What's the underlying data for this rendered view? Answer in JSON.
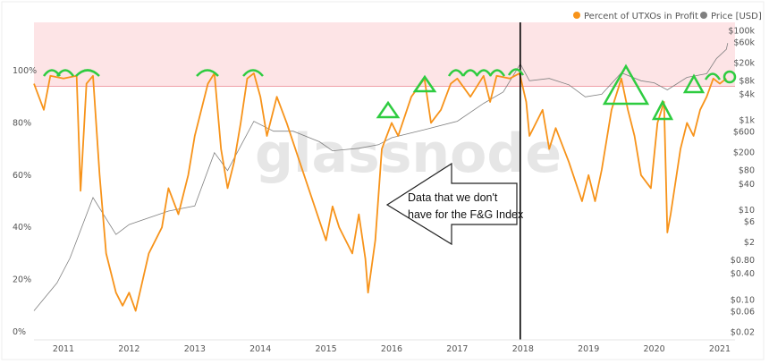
{
  "chart_data": {
    "type": "line",
    "title": "",
    "legend": {
      "placement": "top-right",
      "entries": [
        "Percent of UTXOs in Profit",
        "Price [USD]"
      ]
    },
    "colors": {
      "percent": "#f7931a",
      "price": "#808080",
      "band": "#fde4e6",
      "threshold": "#f0a0a8",
      "annotation": "#2ecc40",
      "divider": "#000000"
    },
    "x_ticks": [
      "2011",
      "2012",
      "2013",
      "2014",
      "2015",
      "2016",
      "2017",
      "2018",
      "2019",
      "2020",
      "2021"
    ],
    "xlim": [
      2010.55,
      2021.2
    ],
    "y_left": {
      "ticks": [
        "0%",
        "20%",
        "40%",
        "60%",
        "80%",
        "100%"
      ],
      "ylim": [
        0,
        100
      ]
    },
    "y_right": {
      "scale": "log",
      "ticks": [
        "$100k",
        "$60k",
        "$20k",
        "$8k",
        "$4k",
        "$1k",
        "$600",
        "$200",
        "$80",
        "$40",
        "$10",
        "$6",
        "$2",
        "$0.80",
        "$0.40",
        "$0.10",
        "$0.06",
        "$0.02"
      ],
      "tick_values": [
        100000,
        60000,
        20000,
        8000,
        4000,
        1000,
        600,
        200,
        80,
        40,
        10,
        6,
        2,
        0.8,
        0.4,
        0.1,
        0.06,
        0.02
      ]
    },
    "threshold_percent": 94,
    "divider_year": 2018.0,
    "series": [
      {
        "name": "Percent of UTXOs in Profit",
        "x": [
          2010.55,
          2010.7,
          2010.8,
          2011.0,
          2011.2,
          2011.26,
          2011.35,
          2011.45,
          2011.55,
          2011.65,
          2011.8,
          2011.9,
          2012.0,
          2012.1,
          2012.3,
          2012.5,
          2012.6,
          2012.75,
          2012.9,
          2013.0,
          2013.2,
          2013.3,
          2013.4,
          2013.5,
          2013.6,
          2013.7,
          2013.8,
          2013.9,
          2014.0,
          2014.1,
          2014.25,
          2014.4,
          2014.6,
          2014.8,
          2015.0,
          2015.1,
          2015.2,
          2015.4,
          2015.5,
          2015.6,
          2015.64,
          2015.75,
          2015.85,
          2016.0,
          2016.1,
          2016.3,
          2016.5,
          2016.6,
          2016.75,
          2016.9,
          2017.0,
          2017.2,
          2017.4,
          2017.5,
          2017.6,
          2017.8,
          2017.95,
          2018.05,
          2018.1,
          2018.3,
          2018.4,
          2018.5,
          2018.7,
          2018.9,
          2019.0,
          2019.1,
          2019.2,
          2019.35,
          2019.5,
          2019.6,
          2019.7,
          2019.8,
          2019.95,
          2020.05,
          2020.15,
          2020.2,
          2020.25,
          2020.4,
          2020.5,
          2020.6,
          2020.7,
          2020.8,
          2020.9,
          2021.0,
          2021.1
        ],
        "values": [
          95,
          85,
          98,
          97,
          98,
          54,
          95,
          98,
          60,
          30,
          15,
          10,
          15,
          8,
          30,
          40,
          55,
          45,
          60,
          75,
          95,
          99,
          70,
          55,
          65,
          80,
          97,
          99,
          90,
          75,
          90,
          80,
          65,
          50,
          35,
          48,
          40,
          30,
          45,
          28,
          15,
          35,
          70,
          80,
          75,
          90,
          97,
          80,
          85,
          95,
          97,
          90,
          98,
          88,
          98,
          97,
          99,
          88,
          75,
          85,
          70,
          78,
          65,
          50,
          60,
          50,
          62,
          85,
          97,
          85,
          75,
          60,
          55,
          80,
          88,
          38,
          45,
          70,
          80,
          75,
          85,
          90,
          97,
          95,
          97
        ]
      },
      {
        "name": "Price [USD]",
        "x": [
          2010.55,
          2010.9,
          2011.1,
          2011.45,
          2011.8,
          2012.0,
          2012.6,
          2013.0,
          2013.3,
          2013.5,
          2013.9,
          2014.2,
          2014.5,
          2014.9,
          2015.1,
          2015.5,
          2015.8,
          2016.0,
          2016.5,
          2017.0,
          2017.4,
          2017.7,
          2017.96,
          2018.1,
          2018.4,
          2018.7,
          2018.95,
          2019.2,
          2019.5,
          2019.8,
          2020.0,
          2020.2,
          2020.5,
          2020.8,
          2020.95,
          2021.1,
          2021.12
        ],
        "values": [
          0.06,
          0.25,
          0.9,
          20,
          3,
          5,
          10,
          13,
          200,
          80,
          1000,
          600,
          600,
          350,
          220,
          250,
          300,
          430,
          650,
          1000,
          2500,
          4500,
          19000,
          8000,
          9000,
          6500,
          3500,
          4000,
          12000,
          8000,
          7200,
          5000,
          9500,
          11500,
          25000,
          40000,
          55000
        ]
      }
    ],
    "annotations": {
      "watermark": "glassnode",
      "arrow_text": [
        "Data that we don't",
        "have for the F&G Index"
      ]
    }
  }
}
